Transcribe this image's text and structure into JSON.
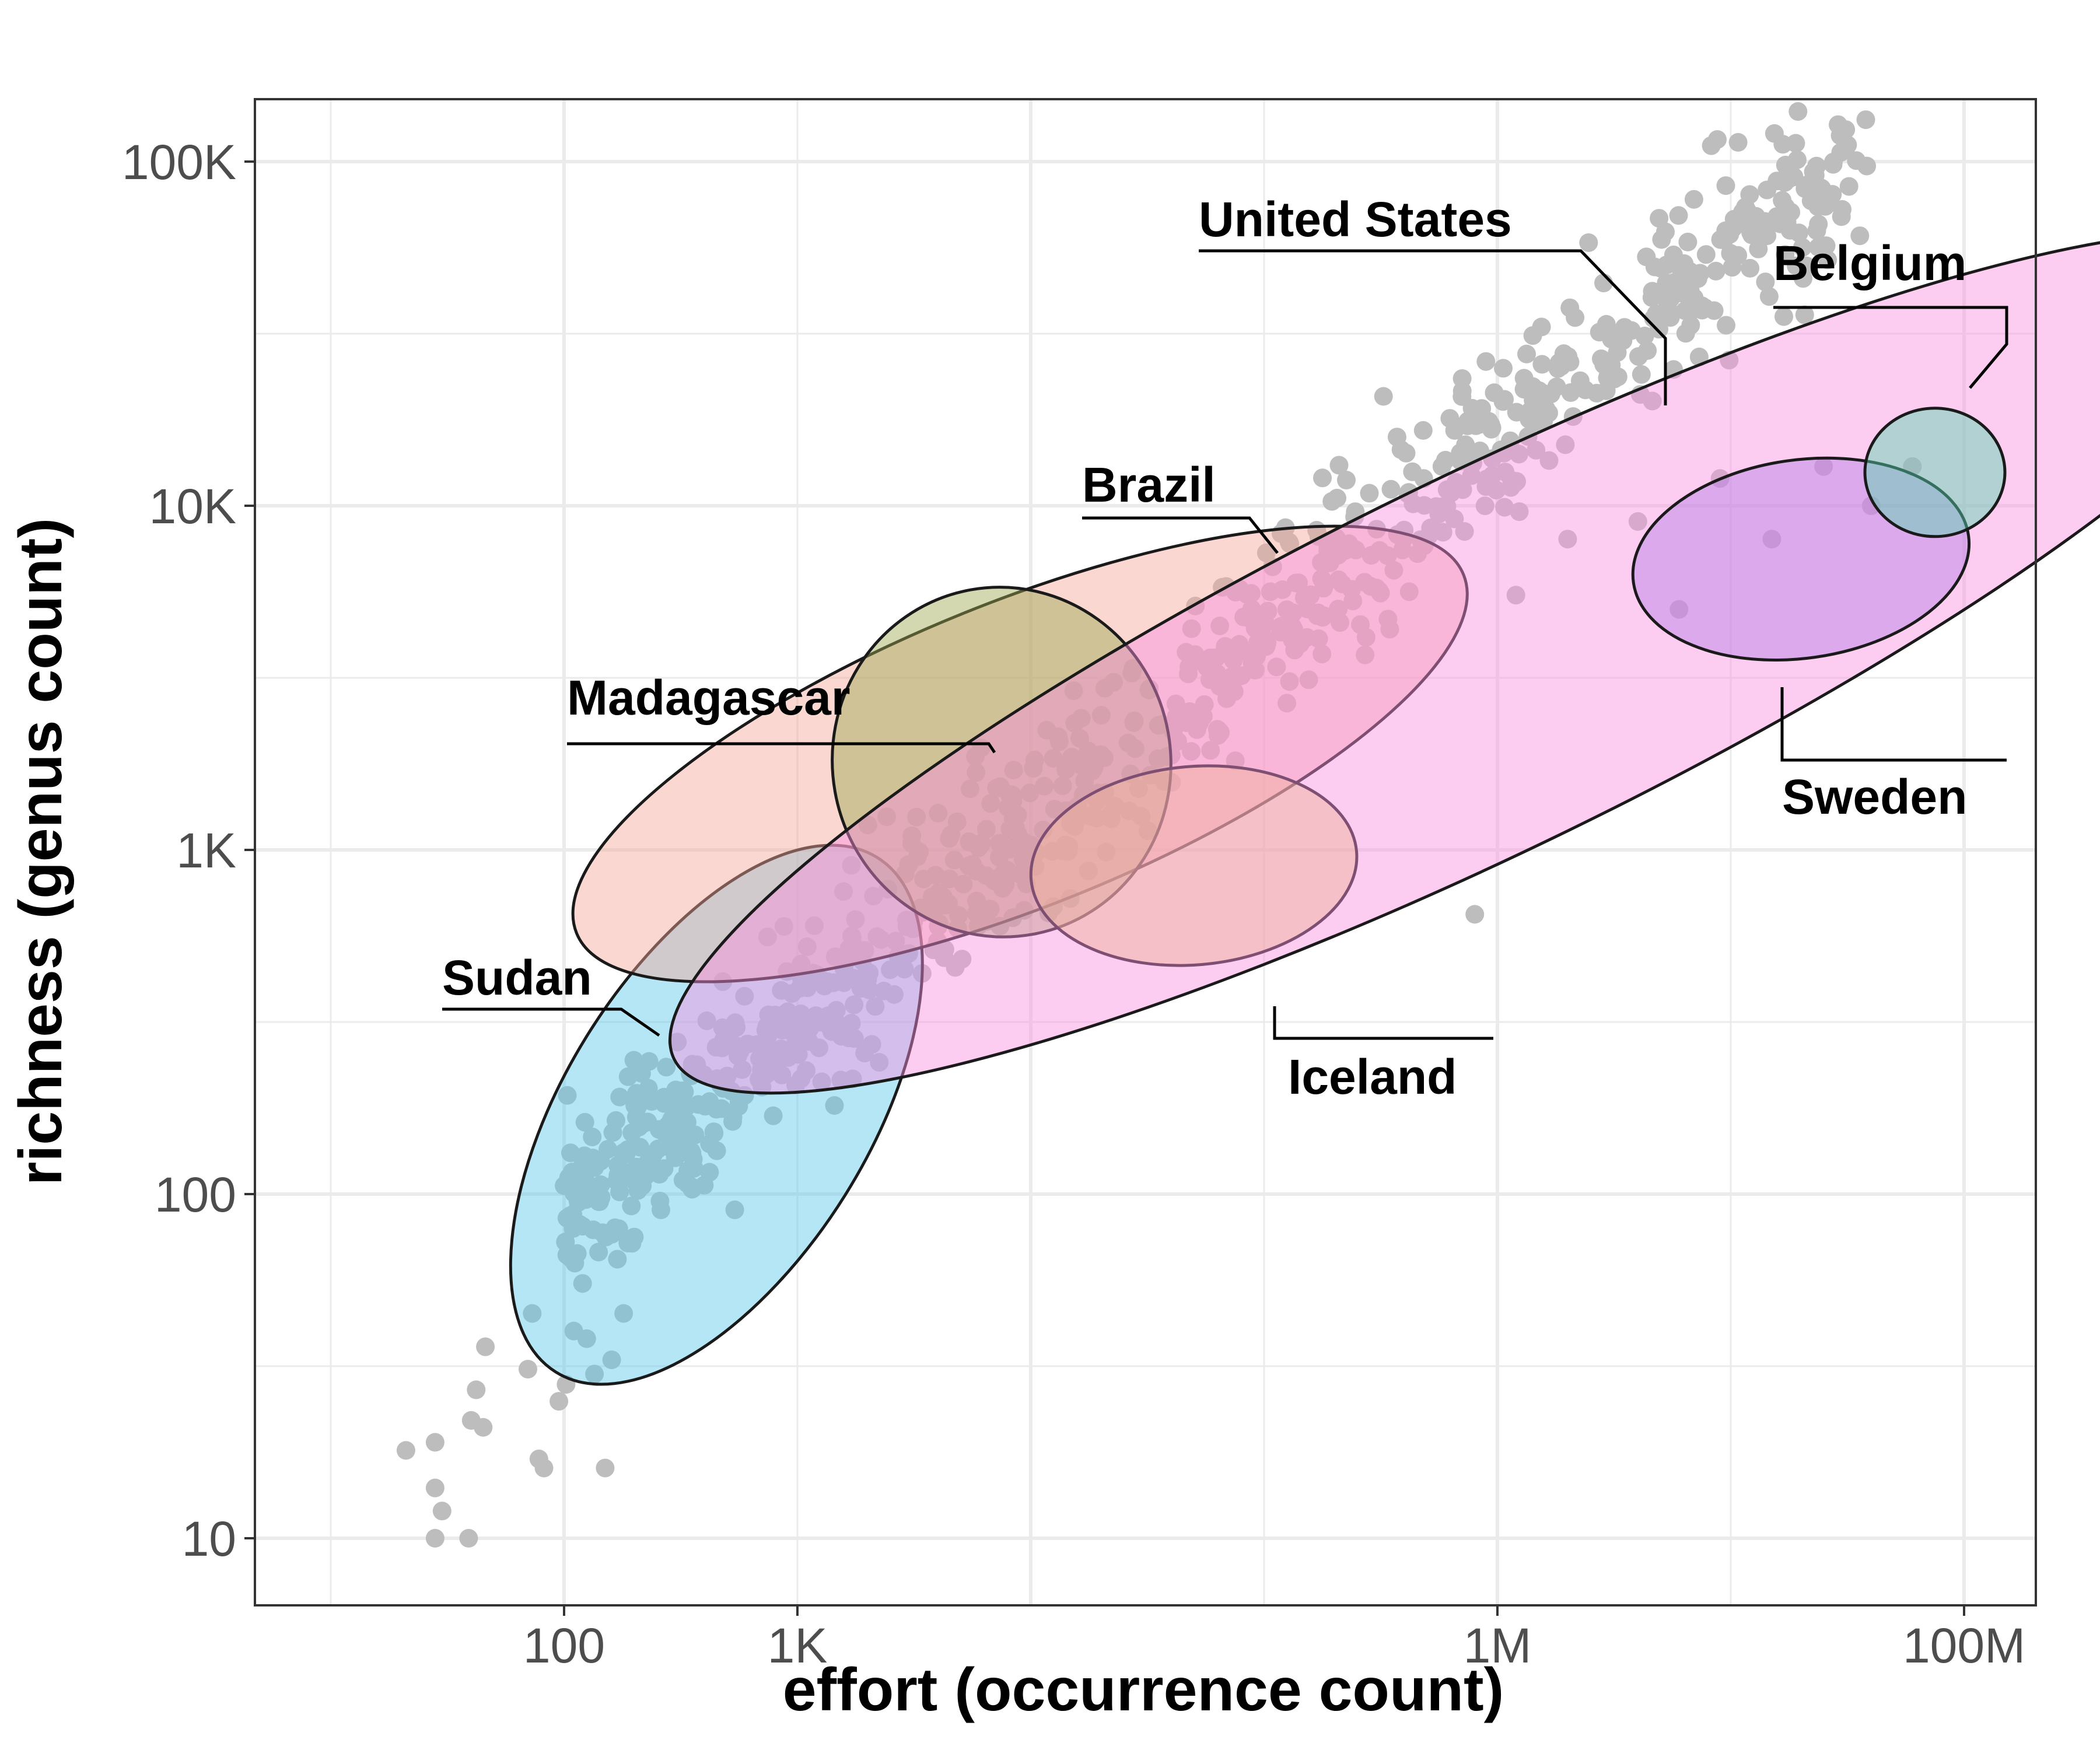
{
  "chart_data": {
    "type": "scatter",
    "xlabel": "effort (occurrence count)",
    "ylabel": "richness (genus count)",
    "xscale": "log10",
    "yscale": "log10",
    "xlim": [
      5,
      300000000
    ],
    "ylim": [
      5,
      160000
    ],
    "grid": true,
    "xticks": [
      {
        "value": 100,
        "label": "100"
      },
      {
        "value": 1000,
        "label": "1K"
      },
      {
        "value": 1000000,
        "label": "1M"
      },
      {
        "value": 100000000,
        "label": "100M"
      }
    ],
    "yticks": [
      {
        "value": 10,
        "label": "10"
      },
      {
        "value": 100,
        "label": "100"
      },
      {
        "value": 1000,
        "label": "1K"
      },
      {
        "value": 10000,
        "label": "10K"
      },
      {
        "value": 100000,
        "label": "100K"
      }
    ],
    "points": {
      "color": "#bdbdbd",
      "description_pairs": [
        [
          21,
          18
        ],
        [
          28,
          10
        ],
        [
          28,
          14
        ],
        [
          28,
          19
        ],
        [
          30,
          12
        ],
        [
          39,
          10
        ],
        [
          40,
          22
        ],
        [
          42,
          27
        ],
        [
          45,
          21
        ],
        [
          46,
          36
        ],
        [
          70,
          31
        ],
        [
          73,
          45
        ],
        [
          78,
          17
        ],
        [
          82,
          16
        ],
        [
          95,
          25
        ],
        [
          102,
          28
        ],
        [
          110,
          40
        ],
        [
          120,
          55
        ],
        [
          125,
          38
        ],
        [
          135,
          30
        ],
        [
          150,
          16
        ],
        [
          160,
          33
        ],
        [
          180,
          45
        ],
        [
          200,
          75
        ],
        [
          260,
          90
        ],
        [
          330,
          110
        ],
        [
          420,
          140
        ],
        [
          560,
          180
        ],
        [
          700,
          230
        ],
        [
          900,
          300
        ],
        [
          1200,
          330
        ],
        [
          1600,
          300
        ],
        [
          2000,
          420
        ],
        [
          2600,
          380
        ],
        [
          3000,
          500
        ],
        [
          4200,
          520
        ],
        [
          6500,
          620
        ],
        [
          9000,
          850
        ],
        [
          800000,
          650
        ],
        [
          1200000,
          5500
        ],
        [
          2000000,
          8000
        ],
        [
          4000000,
          9000
        ],
        [
          6000000,
          5000
        ],
        [
          9000000,
          12000
        ],
        [
          15000000,
          8000
        ],
        [
          25000000,
          13000
        ],
        [
          40000000,
          10000
        ],
        [
          60000000,
          13000
        ]
      ]
    },
    "series": [
      {
        "name": "Sudan",
        "color": "#5ac8ea",
        "ellipse": {
          "center": [
            450,
            170
          ],
          "tilt_deg": 58
        }
      },
      {
        "name": "Madagascar",
        "color": "#f4a89a",
        "ellipse": {
          "center": [
            9000,
            1900
          ],
          "tilt_deg": 22
        }
      },
      {
        "name": "Brazil",
        "color": "#9ea850",
        "ellipse": {
          "center": [
            7500,
            1800
          ],
          "tilt_deg": 10
        }
      },
      {
        "name": "Iceland",
        "color": "#e8d060",
        "ellipse": {
          "center": [
            50000,
            900
          ],
          "tilt_deg": 5
        }
      },
      {
        "name": "United States",
        "color": "#f98fe0",
        "ellipse": {
          "center": [
            900000,
            3500
          ],
          "tilt_deg": 26
        }
      },
      {
        "name": "Sweden",
        "color": "#b47fe6",
        "ellipse": {
          "center": [
            20000000,
            7000
          ],
          "tilt_deg": 8
        }
      },
      {
        "name": "Belgium",
        "color": "#56d6b0",
        "ellipse": {
          "center": [
            75000000,
            12500
          ],
          "tilt_deg": 0
        }
      }
    ],
    "annotations": [
      {
        "text": "Sudan"
      },
      {
        "text": "Madagascar"
      },
      {
        "text": "Brazil"
      },
      {
        "text": "Iceland"
      },
      {
        "text": "United States"
      },
      {
        "text": "Sweden"
      },
      {
        "text": "Belgium"
      }
    ]
  }
}
